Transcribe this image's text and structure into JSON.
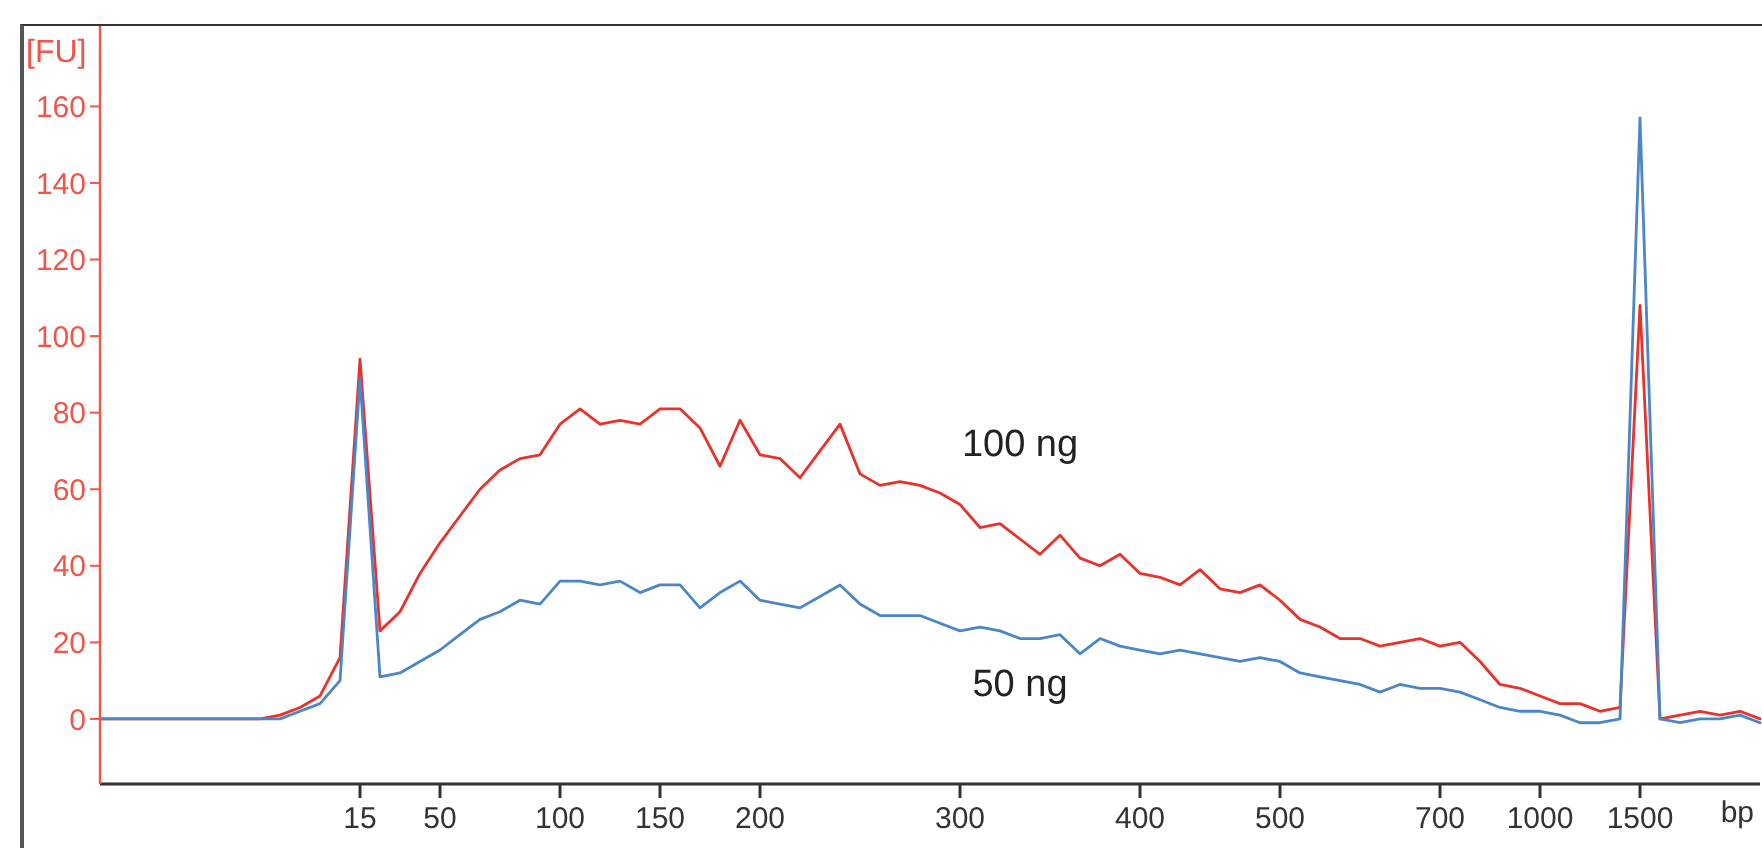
{
  "chart_data": {
    "type": "line",
    "xlabel": "bp",
    "ylabel": "[FU]",
    "categories": [
      null,
      null,
      null,
      null,
      null,
      null,
      null,
      null,
      null,
      null,
      null,
      null,
      null,
      "15",
      null,
      null,
      null,
      "50",
      null,
      null,
      null,
      null,
      null,
      "100",
      null,
      null,
      null,
      null,
      "150",
      null,
      null,
      null,
      null,
      "200",
      null,
      null,
      null,
      null,
      null,
      null,
      null,
      null,
      null,
      "300",
      null,
      null,
      null,
      null,
      null,
      null,
      null,
      null,
      "400",
      null,
      null,
      null,
      null,
      null,
      null,
      "500",
      null,
      null,
      null,
      null,
      null,
      null,
      null,
      "700",
      null,
      null,
      null,
      null,
      "1000",
      null,
      null,
      null,
      null,
      "1500",
      null,
      null,
      null,
      null,
      null,
      null
    ],
    "ylim": [
      -17,
      181
    ],
    "yticks": [
      0,
      20,
      40,
      60,
      80,
      100,
      120,
      140,
      160
    ],
    "grid": false,
    "marker": "none",
    "line_style": "solid",
    "series": [
      {
        "name": "100 ng",
        "color": "#e8322b",
        "values": [
          0,
          0,
          0,
          0,
          0,
          0,
          0,
          0,
          0,
          1,
          3,
          6,
          16,
          94,
          23,
          28,
          38,
          46,
          53,
          60,
          65,
          68,
          69,
          77,
          81,
          77,
          78,
          77,
          81,
          81,
          76,
          66,
          78,
          69,
          68,
          63,
          70,
          77,
          64,
          61,
          62,
          61,
          59,
          56,
          50,
          51,
          47,
          43,
          48,
          42,
          40,
          43,
          38,
          37,
          35,
          39,
          34,
          33,
          35,
          31,
          26,
          24,
          21,
          21,
          19,
          20,
          21,
          19,
          20,
          15,
          9,
          8,
          6,
          4,
          4,
          2,
          3,
          108,
          0,
          1,
          2,
          1,
          2,
          0
        ]
      },
      {
        "name": "50 ng",
        "color": "#4a86c8",
        "values": [
          0,
          0,
          0,
          0,
          0,
          0,
          0,
          0,
          0,
          0,
          2,
          4,
          10,
          89,
          11,
          12,
          15,
          18,
          22,
          26,
          28,
          31,
          30,
          36,
          36,
          35,
          36,
          33,
          35,
          35,
          29,
          33,
          36,
          31,
          30,
          29,
          32,
          35,
          30,
          27,
          27,
          27,
          25,
          23,
          24,
          23,
          21,
          21,
          22,
          17,
          21,
          19,
          18,
          17,
          18,
          17,
          16,
          15,
          16,
          15,
          12,
          11,
          10,
          9,
          7,
          9,
          8,
          8,
          7,
          5,
          3,
          2,
          2,
          1,
          -1,
          -1,
          0,
          157,
          0,
          -1,
          0,
          0,
          1,
          -1
        ]
      }
    ]
  }
}
